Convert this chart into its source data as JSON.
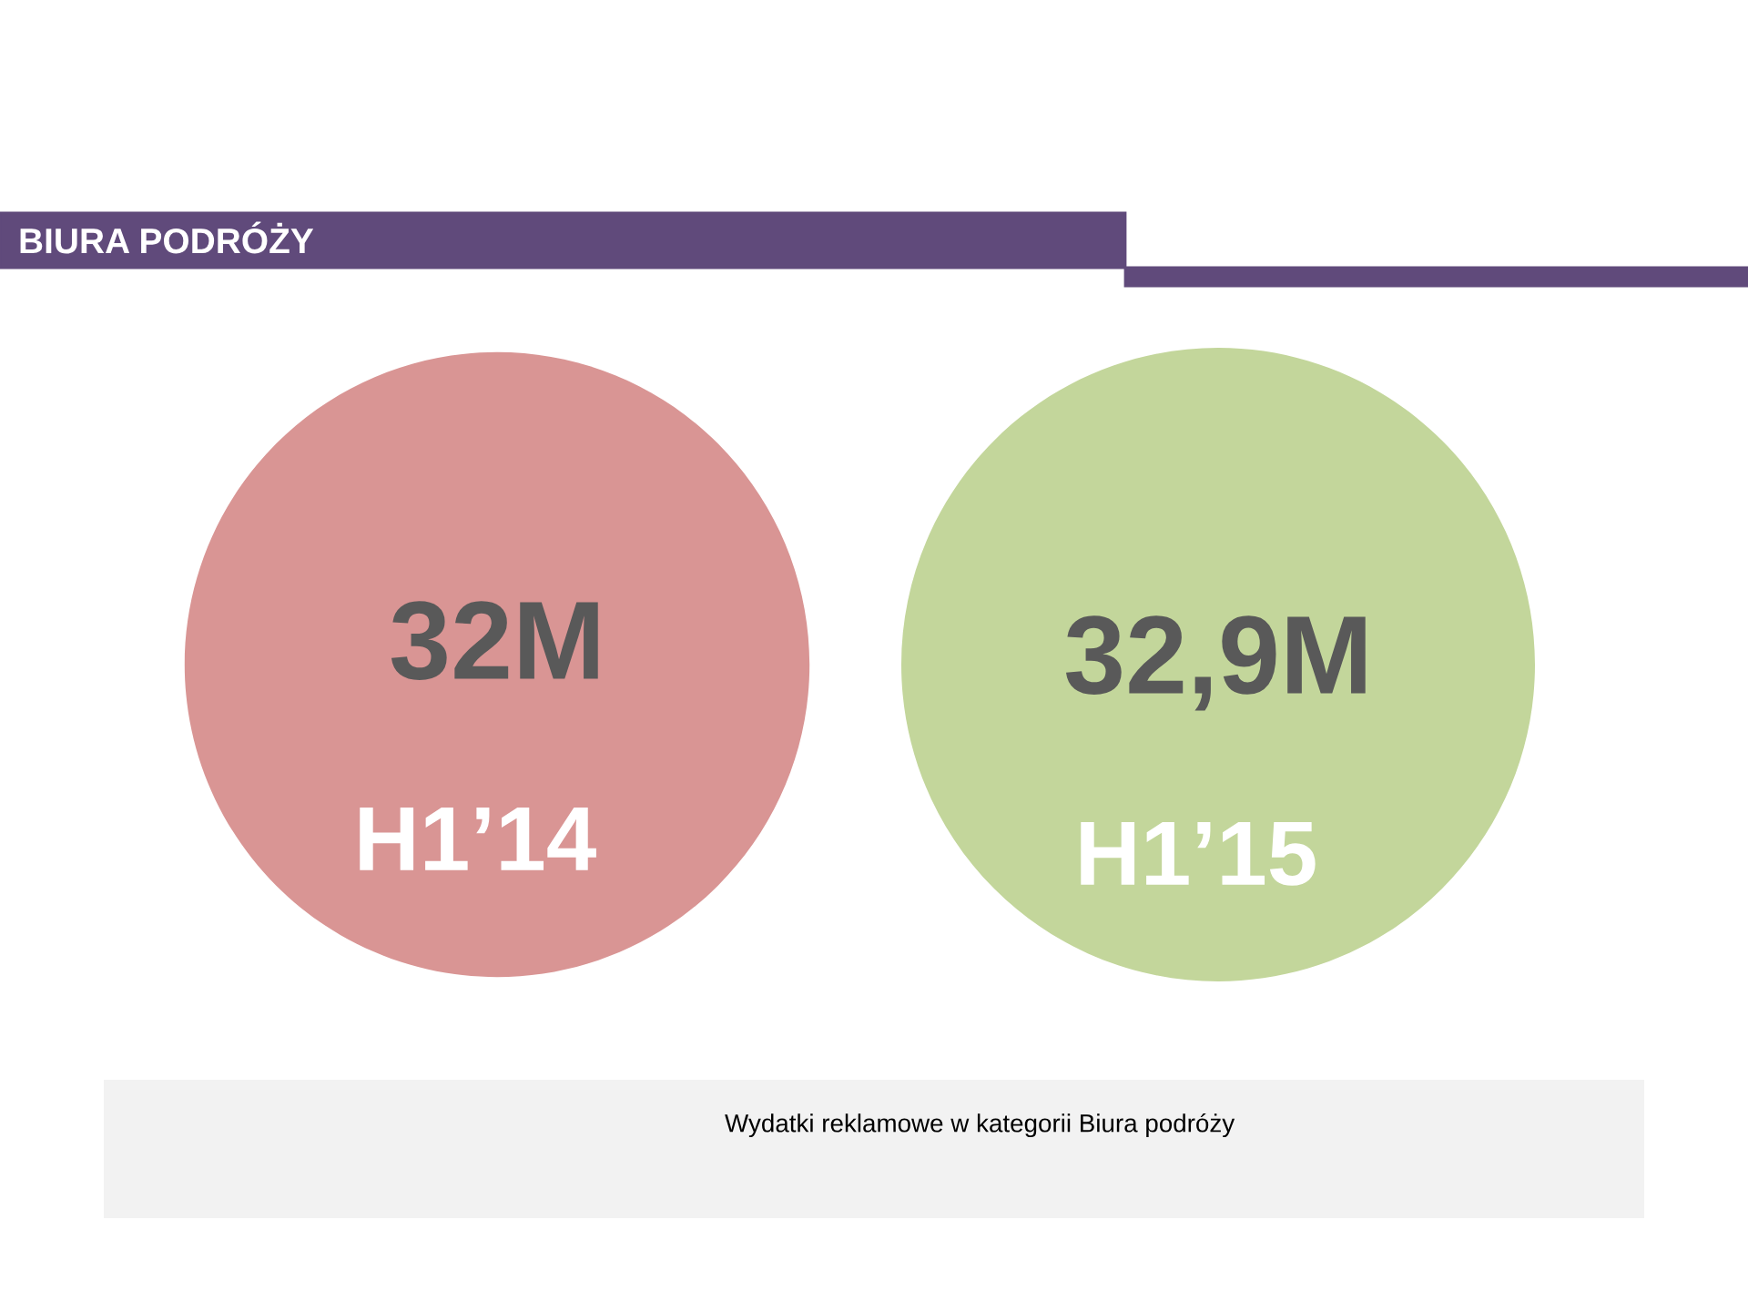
{
  "chart_data": {
    "type": "other",
    "title": "BIURA PODRÓŻY",
    "categories": [
      "H1’14",
      "H1’15"
    ],
    "values": [
      32,
      32.9
    ],
    "value_labels": [
      "32M",
      "32,9M"
    ],
    "colors": [
      "#d99594",
      "#c3d69b"
    ],
    "annotations": [
      "Wydatki reklamowe w kategorii Biura podróży"
    ]
  }
}
